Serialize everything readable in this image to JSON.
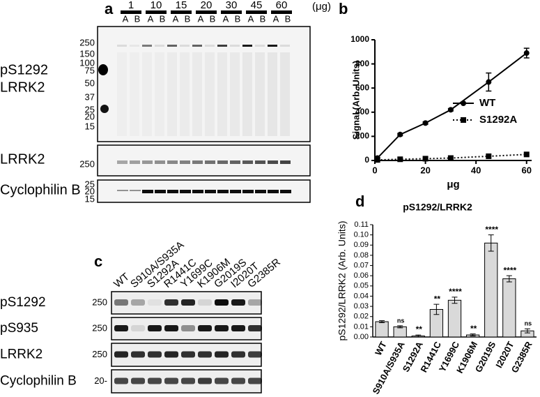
{
  "panel_labels": [
    "a",
    "b",
    "c",
    "d"
  ],
  "blot_a": {
    "amounts": [
      "1",
      "10",
      "15",
      "20",
      "30",
      "45",
      "60"
    ],
    "unit": "(μg)",
    "lanes": [
      "A",
      "B"
    ],
    "markers": [
      "250",
      "150",
      "100",
      "75",
      "50",
      "37",
      "25",
      "20",
      "15"
    ],
    "main_label": [
      "pS1292",
      "LRRK2"
    ],
    "lrrk2_label": "LRRK2",
    "lrrk2_marker": "250",
    "cyclo_label": "Cyclophilin B",
    "cyclo_markers": [
      "25",
      "20",
      "15"
    ]
  },
  "blot_c": {
    "lanes": [
      "WT",
      "S910A/S935A",
      "S1292A",
      "R1441C",
      "Y1699C",
      "K1906M",
      "G2019S",
      "I2020T",
      "G2385R"
    ],
    "rows": [
      {
        "label": "pS1292",
        "marker": "250"
      },
      {
        "label": "pS935",
        "marker": "250"
      },
      {
        "label": "LRRK2",
        "marker": "250"
      },
      {
        "label": "Cyclophilin B",
        "marker": "20-"
      }
    ]
  },
  "chart_data": [
    {
      "type": "line",
      "xlabel": "μg",
      "ylabel": "Signal (Arb. Units)",
      "x": [
        1,
        10,
        20,
        30,
        45,
        60
      ],
      "series": [
        {
          "name": "WT",
          "color": "#000000",
          "style": "solid",
          "marker": "circle",
          "values": [
            20,
            215,
            310,
            420,
            650,
            890
          ],
          "errors": [
            5,
            10,
            10,
            10,
            75,
            40
          ]
        },
        {
          "name": "S1292A",
          "color": "#000000",
          "style": "dotted",
          "marker": "square",
          "values": [
            5,
            10,
            15,
            20,
            35,
            50
          ]
        }
      ],
      "xlim": [
        0,
        62
      ],
      "xticks": [
        0,
        20,
        40,
        60
      ],
      "ylim": [
        0,
        1000
      ],
      "yticks": [
        0,
        200,
        400,
        600,
        800,
        1000
      ],
      "legend": "right"
    },
    {
      "type": "bar",
      "title": "pS1292/LRRK2",
      "ylabel": "pS1292/LRRK2 (Arb. Units)",
      "categories": [
        "WT",
        "S910A/S935A",
        "S1292A",
        "R1441C",
        "Y1699C",
        "K1906M",
        "G2019S",
        "I2020T",
        "G2385R"
      ],
      "values": [
        0.015,
        0.01,
        0.001,
        0.027,
        0.036,
        0.002,
        0.092,
        0.057,
        0.006
      ],
      "errors": [
        0.001,
        0.001,
        0.001,
        0.005,
        0.003,
        0.001,
        0.008,
        0.003,
        0.002
      ],
      "significance": [
        null,
        "ns",
        "**",
        "**",
        "****",
        "**",
        "****",
        "****",
        "ns"
      ],
      "color": "#d9d9d9",
      "ylim": [
        0,
        0.11
      ],
      "yticks": [
        {
          "value": 0,
          "label": "0.00"
        },
        0.01,
        0.02,
        0.03,
        0.04,
        0.05,
        0.06,
        0.07,
        0.08,
        0.09,
        {
          "value": 0.1,
          "label": "0.10"
        },
        0.11
      ]
    }
  ]
}
